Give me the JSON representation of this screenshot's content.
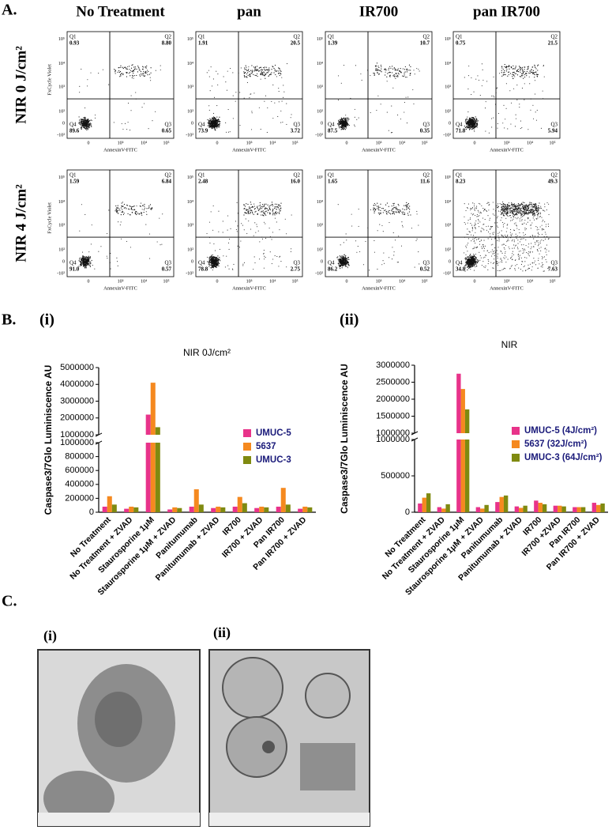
{
  "panel_a": {
    "label": "A.",
    "columns": [
      "No Treatment",
      "pan",
      "IR700",
      "pan IR700"
    ],
    "rows": [
      "NIR 0 J/cm²",
      "NIR 4 J/cm²"
    ],
    "x_axis_label": "AnnexinV-FITC",
    "y_axis_label": "FxCycle Violet",
    "y_tick_labels": [
      "10⁵",
      "10⁴",
      "10³",
      "10²",
      "0",
      "-10²"
    ],
    "x_tick_labels": [
      "0",
      "10³",
      "10⁴",
      "10⁵"
    ],
    "quadrant_names": [
      "Q1",
      "Q2",
      "Q3",
      "Q4"
    ],
    "plots": [
      {
        "q1": "0.93",
        "q2": "8.80",
        "q3": "0.65",
        "q4": "89.6"
      },
      {
        "q1": "1.91",
        "q2": "20.5",
        "q3": "3.72",
        "q4": "73.9"
      },
      {
        "q1": "1.39",
        "q2": "10.7",
        "q3": "0.35",
        "q4": "87.5"
      },
      {
        "q1": "0.75",
        "q2": "21.5",
        "q3": "5.94",
        "q4": "71.8"
      },
      {
        "q1": "1.59",
        "q2": "6.84",
        "q3": "0.57",
        "q4": "91.0"
      },
      {
        "q1": "2.48",
        "q2": "16.0",
        "q3": "2.75",
        "q4": "78.8"
      },
      {
        "q1": "1.65",
        "q2": "11.6",
        "q3": "0.52",
        "q4": "86.2"
      },
      {
        "q1": "8.23",
        "q2": "49.3",
        "q3": "7.63",
        "q4": "34.8"
      }
    ]
  },
  "panel_b": {
    "label": "B."
  },
  "chart_data": [
    {
      "type": "bar",
      "label": "(i)",
      "title": "NIR 0J/cm²",
      "y_label": "Caspase3/7Glo Luminiscence AU",
      "categories": [
        "No Treatment",
        "No Treatment + ZVAD",
        "Staurosporine 1μM",
        "Staurosporine 1μM + ZVAD",
        "Panitumumab",
        "Panitumumab + ZVAD",
        "IR700",
        "IR700 + ZVAD",
        "Pan IR700",
        "Pan IR700 + ZVAD"
      ],
      "series": [
        {
          "name": "UMUC-5",
          "color": "#e8338a",
          "values": [
            80000,
            50000,
            2200000,
            40000,
            80000,
            60000,
            80000,
            60000,
            80000,
            50000
          ]
        },
        {
          "name": "5637",
          "color": "#f5891f",
          "values": [
            230000,
            80000,
            4100000,
            70000,
            330000,
            80000,
            220000,
            80000,
            350000,
            80000
          ]
        },
        {
          "name": "UMUC-3",
          "color": "#7f8a10",
          "values": [
            110000,
            70000,
            1450000,
            60000,
            110000,
            70000,
            130000,
            70000,
            110000,
            70000
          ]
        }
      ],
      "ylim_lower": [
        0,
        1000000
      ],
      "yticks_lower": [
        0,
        200000,
        400000,
        600000,
        800000,
        1000000
      ],
      "ylim_upper": [
        1000000,
        5000000
      ],
      "yticks_upper": [
        1000000,
        2000000,
        3000000,
        4000000,
        5000000
      ],
      "legend": "right"
    },
    {
      "type": "bar",
      "label": "(ii)",
      "title": "NIR",
      "y_label": "Caspase3/7Glo Luminiscence AU",
      "categories": [
        "No Treatment",
        "No Treatment + ZVAD",
        "Staurosporine 1μM",
        "Staurosporine 1μM + ZVAD",
        "Panitumumab",
        "Panitumumab + ZVAD",
        "IR700",
        "IR700 +ZVAD",
        "Pan IR700",
        "Pan IR700 + ZVAD"
      ],
      "series": [
        {
          "name": "UMUC-5 (4J/cm²)",
          "color": "#e8338a",
          "values": [
            120000,
            70000,
            2750000,
            70000,
            140000,
            80000,
            160000,
            90000,
            70000,
            130000
          ]
        },
        {
          "name": "5637 (32J/cm²)",
          "color": "#f5891f",
          "values": [
            200000,
            50000,
            2300000,
            50000,
            210000,
            60000,
            130000,
            90000,
            70000,
            100000
          ]
        },
        {
          "name": "UMUC-3 (64J/cm²)",
          "color": "#7f8a10",
          "values": [
            260000,
            110000,
            1700000,
            100000,
            230000,
            90000,
            110000,
            80000,
            70000,
            120000
          ]
        }
      ],
      "ylim_lower": [
        0,
        1000000
      ],
      "yticks_lower": [
        0,
        500000,
        1000000
      ],
      "ylim_upper": [
        1000000,
        3000000
      ],
      "yticks_upper": [
        1000000,
        1500000,
        2000000,
        2500000,
        3000000
      ],
      "legend": "right"
    }
  ],
  "panel_c": {
    "label": "C.",
    "images": [
      {
        "label": "(i)"
      },
      {
        "label": "(ii)"
      }
    ]
  }
}
